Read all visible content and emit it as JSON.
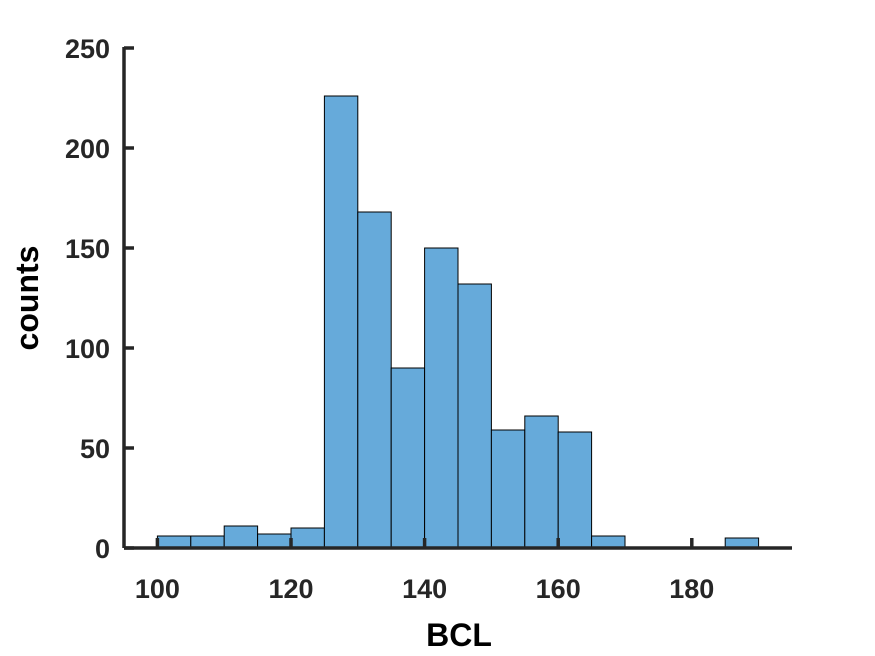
{
  "chart_data": {
    "type": "bar",
    "subtype": "histogram",
    "title": "",
    "xlabel": "BCL",
    "ylabel": "counts",
    "xlim": [
      95,
      195
    ],
    "ylim": [
      0,
      250
    ],
    "xticks": [
      100,
      120,
      140,
      160,
      180
    ],
    "yticks": [
      0,
      50,
      100,
      150,
      200,
      250
    ],
    "grid": false,
    "bar_color": "#66AADA",
    "edge_color": "#000000",
    "axis_color": "#262626",
    "bins": [
      {
        "x0": 100,
        "x1": 105,
        "count": 6
      },
      {
        "x0": 105,
        "x1": 110,
        "count": 6
      },
      {
        "x0": 110,
        "x1": 115,
        "count": 11
      },
      {
        "x0": 115,
        "x1": 120,
        "count": 7
      },
      {
        "x0": 120,
        "x1": 125,
        "count": 10
      },
      {
        "x0": 125,
        "x1": 130,
        "count": 226
      },
      {
        "x0": 130,
        "x1": 135,
        "count": 168
      },
      {
        "x0": 135,
        "x1": 140,
        "count": 90
      },
      {
        "x0": 140,
        "x1": 145,
        "count": 150
      },
      {
        "x0": 145,
        "x1": 150,
        "count": 132
      },
      {
        "x0": 150,
        "x1": 155,
        "count": 59
      },
      {
        "x0": 155,
        "x1": 160,
        "count": 66
      },
      {
        "x0": 160,
        "x1": 165,
        "count": 58
      },
      {
        "x0": 165,
        "x1": 170,
        "count": 6
      },
      {
        "x0": 185,
        "x1": 190,
        "count": 5
      }
    ]
  }
}
